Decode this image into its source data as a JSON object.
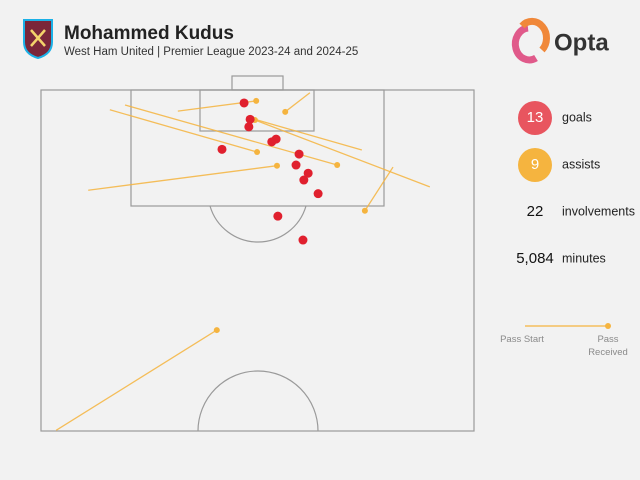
{
  "chart_data": {
    "type": "shot-map",
    "title": "Mohammed Kudus",
    "subtitle": "West Ham United | Premier League 2023-24 and 2024-25",
    "brand": "Opta",
    "xlim": [
      0,
      100
    ],
    "ylim": [
      0,
      50
    ],
    "goals": {
      "color": "#e0202e",
      "x": [
        46.9,
        48.3,
        48.0,
        41.8,
        53.3,
        54.3,
        59.6,
        58.9,
        61.7,
        60.7,
        64.0,
        54.7,
        60.5
      ],
      "y": [
        1.9,
        4.3,
        5.4,
        8.7,
        7.6,
        7.2,
        9.4,
        11.0,
        12.2,
        13.2,
        15.2,
        18.5,
        22.0
      ]
    },
    "assists": {
      "color": "#f5b43f",
      "start_x": [
        31.6,
        62.1,
        74.1,
        15.9,
        19.4,
        10.9,
        81.3,
        3.5,
        89.8
      ],
      "start_y": [
        3.1,
        0.4,
        8.8,
        2.9,
        2.2,
        14.7,
        11.3,
        49.9,
        14.2
      ],
      "end_x": [
        49.7,
        56.4,
        48.3,
        49.9,
        68.4,
        54.5,
        74.8,
        40.6,
        49.4
      ],
      "end_y": [
        1.6,
        3.2,
        4.1,
        9.1,
        11.0,
        11.1,
        17.7,
        35.2,
        4.4
      ]
    },
    "stats": [
      {
        "value": 13,
        "label": "goals",
        "color": "#e8555f"
      },
      {
        "value": 9,
        "label": "assists",
        "color": "#f5b43f"
      },
      {
        "value": 22,
        "label": "involvements"
      },
      {
        "value": 5084,
        "value_label": "5,084",
        "label": "minutes"
      }
    ],
    "legend": {
      "start": "Pass Start",
      "end": "Pass Received"
    }
  }
}
